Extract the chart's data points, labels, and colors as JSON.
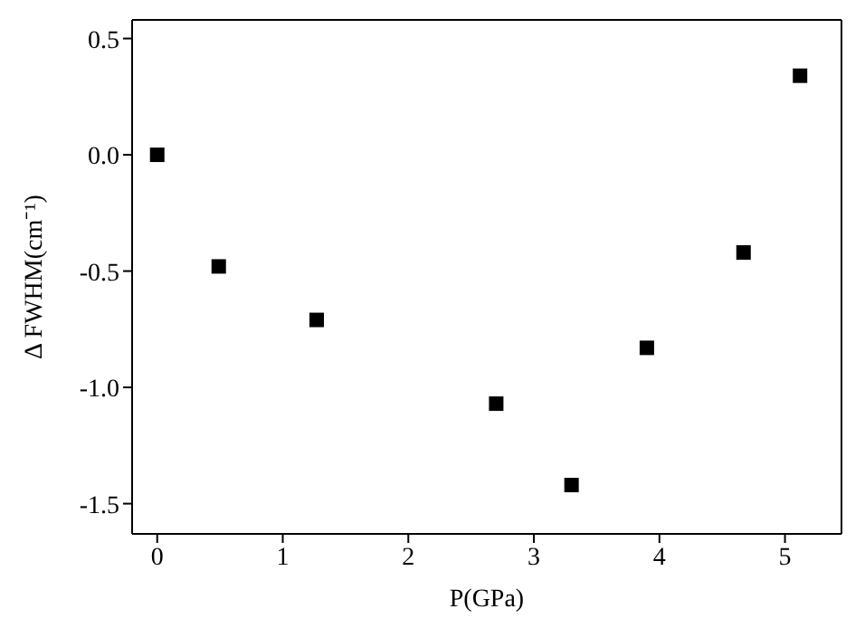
{
  "chart_data": {
    "type": "scatter",
    "xlabel": "P(GPa)",
    "ylabel": "Δ FWHM(cm⁻¹)",
    "x": [
      0,
      0.49,
      1.27,
      2.7,
      3.3,
      3.9,
      4.67,
      5.12
    ],
    "series": [
      {
        "color": "#000000",
        "values": [
          0,
          -0.48,
          -0.71,
          -1.07,
          -1.42,
          -0.83,
          -0.42,
          0.34
        ]
      }
    ],
    "xlim": [
      -0.2,
      5.45
    ],
    "ylim": [
      -1.63,
      0.58
    ],
    "xticks": [
      0,
      1,
      2,
      3,
      4,
      5
    ],
    "yticks": [
      {
        "value": -1.5,
        "label": "-1.5"
      },
      {
        "value": -1,
        "label": "-1.0"
      },
      {
        "value": -0.5,
        "label": "-0.5"
      },
      {
        "value": 0,
        "label": "0.0"
      },
      {
        "value": 0.5,
        "label": "0.5"
      }
    ],
    "marker": "square"
  }
}
